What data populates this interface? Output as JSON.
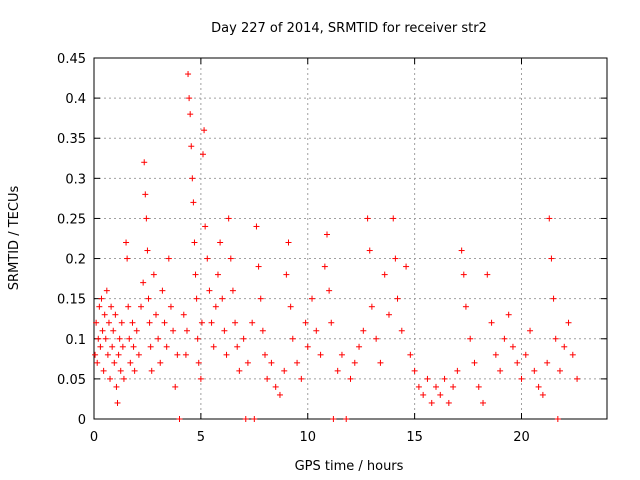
{
  "chart_data": {
    "type": "scatter",
    "title": "Day 227 of 2014, SRMTID for receiver str2",
    "xlabel": "GPS time / hours",
    "ylabel": "SRMTID / TECUs",
    "xlim": [
      0,
      24
    ],
    "ylim": [
      0,
      0.45
    ],
    "x_ticks": [
      0,
      5,
      10,
      15,
      20
    ],
    "x_tick_labels": [
      "0",
      "5",
      "10",
      "15",
      "20"
    ],
    "y_ticks": [
      0,
      0.05,
      0.1,
      0.15,
      0.2,
      0.25,
      0.3,
      0.35,
      0.4,
      0.45
    ],
    "y_tick_labels": [
      "0",
      "0.05",
      "0.1",
      "0.15",
      "0.2",
      "0.25",
      "0.3",
      "0.35",
      "0.4",
      "0.45"
    ],
    "grid": true,
    "marker": "plus",
    "color": "#ff0000",
    "series": [
      {
        "values_note_free": true,
        "points": [
          [
            0.05,
            0.08
          ],
          [
            0.1,
            0.12
          ],
          [
            0.15,
            0.07
          ],
          [
            0.2,
            0.1
          ],
          [
            0.25,
            0.14
          ],
          [
            0.3,
            0.09
          ],
          [
            0.35,
            0.15
          ],
          [
            0.4,
            0.11
          ],
          [
            0.45,
            0.06
          ],
          [
            0.5,
            0.13
          ],
          [
            0.55,
            0.1
          ],
          [
            0.6,
            0.16
          ],
          [
            0.65,
            0.08
          ],
          [
            0.7,
            0.12
          ],
          [
            0.75,
            0.05
          ],
          [
            0.8,
            0.14
          ],
          [
            0.85,
            0.09
          ],
          [
            0.9,
            0.11
          ],
          [
            0.95,
            0.07
          ],
          [
            1.0,
            0.13
          ],
          [
            1.05,
            0.04
          ],
          [
            1.1,
            0.02
          ],
          [
            1.15,
            0.08
          ],
          [
            1.2,
            0.1
          ],
          [
            1.25,
            0.06
          ],
          [
            1.3,
            0.12
          ],
          [
            1.35,
            0.09
          ],
          [
            1.4,
            0.05
          ],
          [
            1.5,
            0.22
          ],
          [
            1.55,
            0.2
          ],
          [
            1.6,
            0.14
          ],
          [
            1.65,
            0.1
          ],
          [
            1.7,
            0.07
          ],
          [
            1.8,
            0.12
          ],
          [
            1.85,
            0.09
          ],
          [
            1.9,
            0.06
          ],
          [
            2.0,
            0.11
          ],
          [
            2.1,
            0.08
          ],
          [
            2.2,
            0.14
          ],
          [
            2.3,
            0.17
          ],
          [
            2.35,
            0.32
          ],
          [
            2.4,
            0.28
          ],
          [
            2.45,
            0.25
          ],
          [
            2.5,
            0.21
          ],
          [
            2.55,
            0.15
          ],
          [
            2.6,
            0.12
          ],
          [
            2.65,
            0.09
          ],
          [
            2.7,
            0.06
          ],
          [
            2.8,
            0.18
          ],
          [
            2.9,
            0.13
          ],
          [
            3.0,
            0.1
          ],
          [
            3.1,
            0.07
          ],
          [
            3.2,
            0.16
          ],
          [
            3.3,
            0.12
          ],
          [
            3.4,
            0.09
          ],
          [
            3.5,
            0.2
          ],
          [
            3.6,
            0.14
          ],
          [
            3.7,
            0.11
          ],
          [
            3.8,
            0.04
          ],
          [
            3.9,
            0.08
          ],
          [
            4.0,
            0.0
          ],
          [
            4.2,
            0.13
          ],
          [
            4.3,
            0.08
          ],
          [
            4.35,
            0.11
          ],
          [
            4.4,
            0.43
          ],
          [
            4.45,
            0.4
          ],
          [
            4.5,
            0.38
          ],
          [
            4.55,
            0.34
          ],
          [
            4.6,
            0.3
          ],
          [
            4.65,
            0.27
          ],
          [
            4.7,
            0.22
          ],
          [
            4.75,
            0.18
          ],
          [
            4.8,
            0.15
          ],
          [
            4.85,
            0.1
          ],
          [
            4.9,
            0.07
          ],
          [
            5.0,
            0.05
          ],
          [
            5.05,
            0.12
          ],
          [
            5.1,
            0.33
          ],
          [
            5.15,
            0.36
          ],
          [
            5.2,
            0.24
          ],
          [
            5.3,
            0.2
          ],
          [
            5.4,
            0.16
          ],
          [
            5.5,
            0.12
          ],
          [
            5.6,
            0.09
          ],
          [
            5.7,
            0.14
          ],
          [
            5.8,
            0.18
          ],
          [
            5.9,
            0.22
          ],
          [
            6.0,
            0.15
          ],
          [
            6.1,
            0.11
          ],
          [
            6.2,
            0.08
          ],
          [
            6.3,
            0.25
          ],
          [
            6.4,
            0.2
          ],
          [
            6.5,
            0.16
          ],
          [
            6.6,
            0.12
          ],
          [
            6.7,
            0.09
          ],
          [
            6.8,
            0.06
          ],
          [
            7.0,
            0.1
          ],
          [
            7.1,
            0.0
          ],
          [
            7.2,
            0.07
          ],
          [
            7.4,
            0.12
          ],
          [
            7.5,
            0.0
          ],
          [
            7.6,
            0.24
          ],
          [
            7.7,
            0.19
          ],
          [
            7.8,
            0.15
          ],
          [
            7.9,
            0.11
          ],
          [
            8.0,
            0.08
          ],
          [
            8.1,
            0.05
          ],
          [
            8.3,
            0.07
          ],
          [
            8.5,
            0.04
          ],
          [
            8.7,
            0.03
          ],
          [
            8.9,
            0.06
          ],
          [
            9.0,
            0.18
          ],
          [
            9.1,
            0.22
          ],
          [
            9.2,
            0.14
          ],
          [
            9.3,
            0.1
          ],
          [
            9.5,
            0.07
          ],
          [
            9.7,
            0.05
          ],
          [
            9.9,
            0.12
          ],
          [
            10.0,
            0.09
          ],
          [
            10.2,
            0.15
          ],
          [
            10.4,
            0.11
          ],
          [
            10.6,
            0.08
          ],
          [
            10.8,
            0.19
          ],
          [
            10.9,
            0.23
          ],
          [
            11.0,
            0.16
          ],
          [
            11.1,
            0.12
          ],
          [
            11.2,
            0.0
          ],
          [
            11.4,
            0.06
          ],
          [
            11.6,
            0.08
          ],
          [
            11.8,
            0.0
          ],
          [
            12.0,
            0.05
          ],
          [
            12.2,
            0.07
          ],
          [
            12.4,
            0.09
          ],
          [
            12.6,
            0.11
          ],
          [
            12.8,
            0.25
          ],
          [
            12.9,
            0.21
          ],
          [
            13.0,
            0.14
          ],
          [
            13.2,
            0.1
          ],
          [
            13.4,
            0.07
          ],
          [
            13.6,
            0.18
          ],
          [
            13.8,
            0.13
          ],
          [
            14.0,
            0.25
          ],
          [
            14.1,
            0.2
          ],
          [
            14.2,
            0.15
          ],
          [
            14.4,
            0.11
          ],
          [
            14.6,
            0.19
          ],
          [
            14.8,
            0.08
          ],
          [
            15.0,
            0.06
          ],
          [
            15.2,
            0.04
          ],
          [
            15.4,
            0.03
          ],
          [
            15.6,
            0.05
          ],
          [
            15.8,
            0.02
          ],
          [
            16.0,
            0.04
          ],
          [
            16.2,
            0.03
          ],
          [
            16.4,
            0.05
          ],
          [
            16.6,
            0.02
          ],
          [
            16.8,
            0.04
          ],
          [
            17.0,
            0.06
          ],
          [
            17.2,
            0.21
          ],
          [
            17.3,
            0.18
          ],
          [
            17.4,
            0.14
          ],
          [
            17.6,
            0.1
          ],
          [
            17.8,
            0.07
          ],
          [
            18.0,
            0.04
          ],
          [
            18.2,
            0.02
          ],
          [
            18.4,
            0.18
          ],
          [
            18.6,
            0.12
          ],
          [
            18.8,
            0.08
          ],
          [
            19.0,
            0.06
          ],
          [
            19.2,
            0.1
          ],
          [
            19.4,
            0.13
          ],
          [
            19.6,
            0.09
          ],
          [
            19.8,
            0.07
          ],
          [
            20.0,
            0.05
          ],
          [
            20.2,
            0.08
          ],
          [
            20.4,
            0.11
          ],
          [
            20.6,
            0.06
          ],
          [
            20.8,
            0.04
          ],
          [
            21.0,
            0.03
          ],
          [
            21.2,
            0.07
          ],
          [
            21.3,
            0.25
          ],
          [
            21.4,
            0.2
          ],
          [
            21.5,
            0.15
          ],
          [
            21.6,
            0.1
          ],
          [
            21.7,
            0.0
          ],
          [
            21.8,
            0.06
          ],
          [
            22.0,
            0.09
          ],
          [
            22.2,
            0.12
          ],
          [
            22.4,
            0.08
          ],
          [
            22.6,
            0.05
          ]
        ]
      }
    ]
  }
}
